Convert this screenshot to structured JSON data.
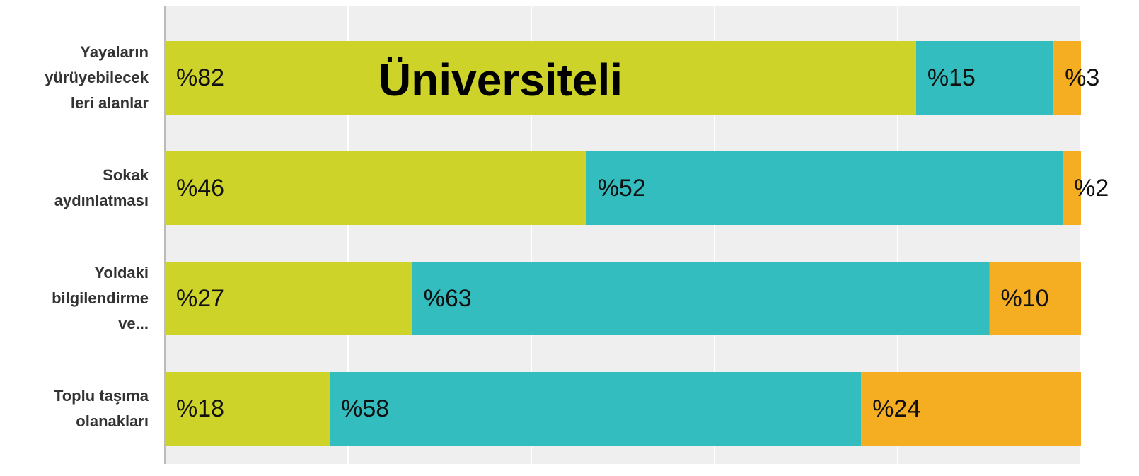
{
  "chart_data": {
    "type": "stacked-barh",
    "title": "Üniversiteli",
    "categories": [
      "Yayaların\nyürüyebilecek\nleri alanlar",
      "Sokak\naydınlatması",
      "Yoldaki\nbilgilendirme\nve...",
      "Toplu taşıma\nolanakları"
    ],
    "series": [
      {
        "color": "#cdd329",
        "values": [
          82,
          46,
          27,
          18
        ],
        "value_labels": [
          "%82",
          "%46",
          "%27",
          "%18"
        ]
      },
      {
        "color": "#33bdbf",
        "values": [
          15,
          52,
          63,
          58
        ],
        "value_labels": [
          "%15",
          "%52",
          "%63",
          "%58"
        ]
      },
      {
        "color": "#f5ad22",
        "values": [
          3,
          2,
          10,
          24
        ],
        "value_labels": [
          "%3",
          "%2",
          "%10",
          "%24"
        ]
      }
    ],
    "xlim": [
      0,
      100
    ],
    "xticks": [
      0,
      20,
      40,
      60,
      80,
      100
    ],
    "grid": true
  }
}
